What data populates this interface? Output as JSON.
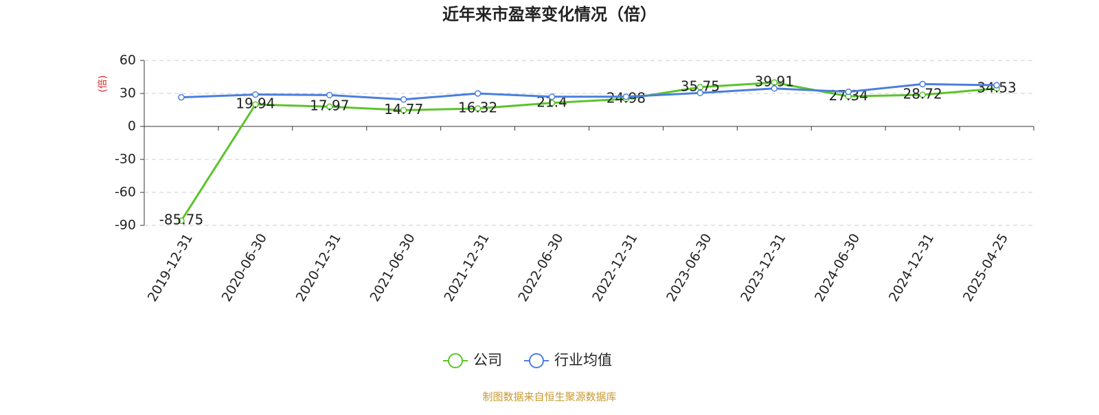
{
  "chart_data": {
    "type": "line",
    "title": "近年来市盈率变化情况（倍）",
    "y_label": "(倍)",
    "categories": [
      "2019-12-31",
      "2020-06-30",
      "2020-12-31",
      "2021-06-30",
      "2021-12-31",
      "2022-06-30",
      "2022-12-31",
      "2023-06-30",
      "2023-12-31",
      "2024-06-30",
      "2024-12-31",
      "2025-04-25"
    ],
    "series": [
      {
        "name": "公司",
        "color": "#5bc42a",
        "values": [
          -85.75,
          19.94,
          17.97,
          14.77,
          16.32,
          21.4,
          24.98,
          35.75,
          39.91,
          27.34,
          28.72,
          34.53
        ]
      },
      {
        "name": "行业均值",
        "color": "#4a7fdc",
        "values": [
          26.5,
          29,
          28.5,
          24.5,
          30,
          27,
          27,
          30.5,
          34.5,
          31.5,
          38.5,
          37.5
        ]
      }
    ],
    "ylim": [
      -90,
      60
    ],
    "yticks": [
      -90,
      -60,
      -30,
      0,
      30,
      60
    ],
    "grid": true,
    "source": "制图数据来自恒生聚源数据库"
  }
}
